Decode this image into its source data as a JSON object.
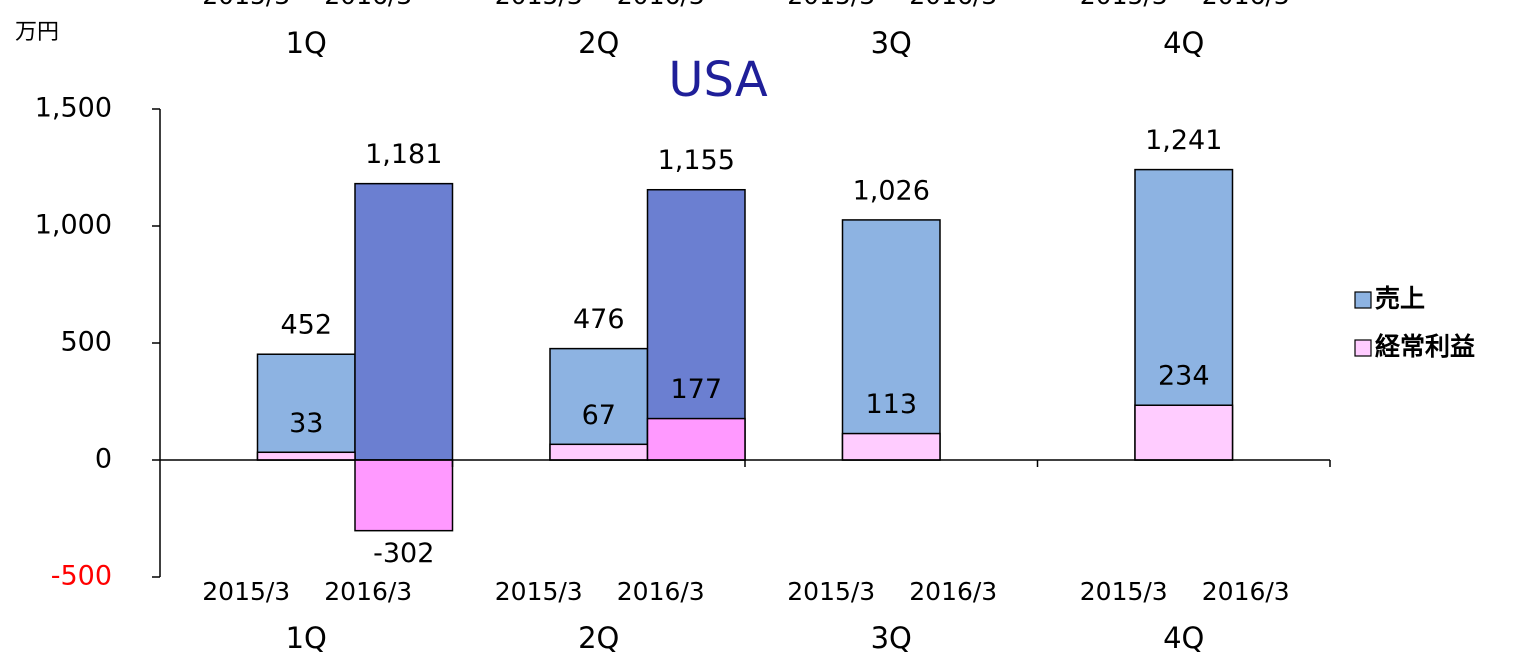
{
  "chart_data": {
    "type": "grouped-overlay-bar",
    "title": "USA",
    "unit": "万円",
    "categories": [
      "1Q",
      "2Q",
      "3Q",
      "4Q"
    ],
    "subcategories": [
      "2015/3",
      "2016/3"
    ],
    "series": [
      {
        "name": "売上",
        "legend_color": "#8db3e2",
        "colors": [
          "#8db3e2",
          "#6b7fd1"
        ],
        "values": [
          [
            452,
            1181
          ],
          [
            476,
            1155
          ],
          [
            1026,
            null
          ],
          [
            1241,
            null
          ]
        ],
        "value_labels": [
          [
            "452",
            "1,181"
          ],
          [
            "476",
            "1,155"
          ],
          [
            "1,026",
            null
          ],
          [
            "1,241",
            null
          ]
        ]
      },
      {
        "name": "経常利益",
        "legend_color": "#ffccff",
        "colors": [
          "#ffccff",
          "#ff99ff"
        ],
        "values": [
          [
            33,
            -302
          ],
          [
            67,
            177
          ],
          [
            113,
            null
          ],
          [
            234,
            null
          ]
        ]
      }
    ],
    "ylim": [
      -500,
      1500
    ],
    "yticks": [
      -500,
      0,
      500,
      {
        "value": 1000,
        "label": "1,000"
      },
      {
        "value": 1500,
        "label": "1,500"
      }
    ],
    "negative_tick_color": "#ff0000",
    "title_color": "#1f1f99",
    "legend": "right"
  }
}
